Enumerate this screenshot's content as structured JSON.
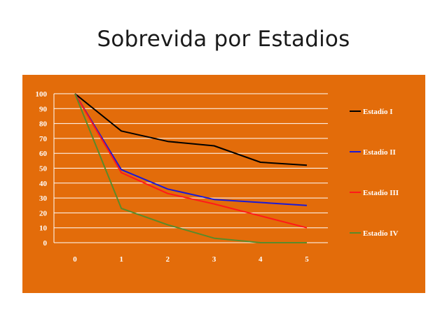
{
  "slide": {
    "title": "Sobrevida por Estadios"
  },
  "colors": {
    "panel": "#e36c0a",
    "grid": "#ffffff"
  },
  "chart_data": {
    "type": "line",
    "x": [
      0,
      1,
      2,
      3,
      4,
      5
    ],
    "x_tick_labels": [
      "0",
      "1",
      "2",
      "3",
      "4",
      "5"
    ],
    "y_tick_labels": [
      "0",
      "10",
      "20",
      "30",
      "40",
      "50",
      "60",
      "70",
      "80",
      "90",
      "100"
    ],
    "ylim": [
      0,
      100
    ],
    "grid": true,
    "legend_position": "right",
    "series": [
      {
        "name": "Estadío I",
        "color": "#000000",
        "values": [
          100,
          75,
          68,
          65,
          54,
          52
        ]
      },
      {
        "name": "Estadío II",
        "color": "#1a1ad6",
        "values": [
          100,
          49,
          36,
          29,
          27,
          25
        ]
      },
      {
        "name": "Estadío III",
        "color": "#ff1a1a",
        "values": [
          100,
          47,
          33,
          26,
          18,
          10
        ]
      },
      {
        "name": "Estadío IV",
        "color": "#5a8a2a",
        "values": [
          100,
          23,
          12,
          3,
          0,
          0
        ]
      }
    ]
  }
}
